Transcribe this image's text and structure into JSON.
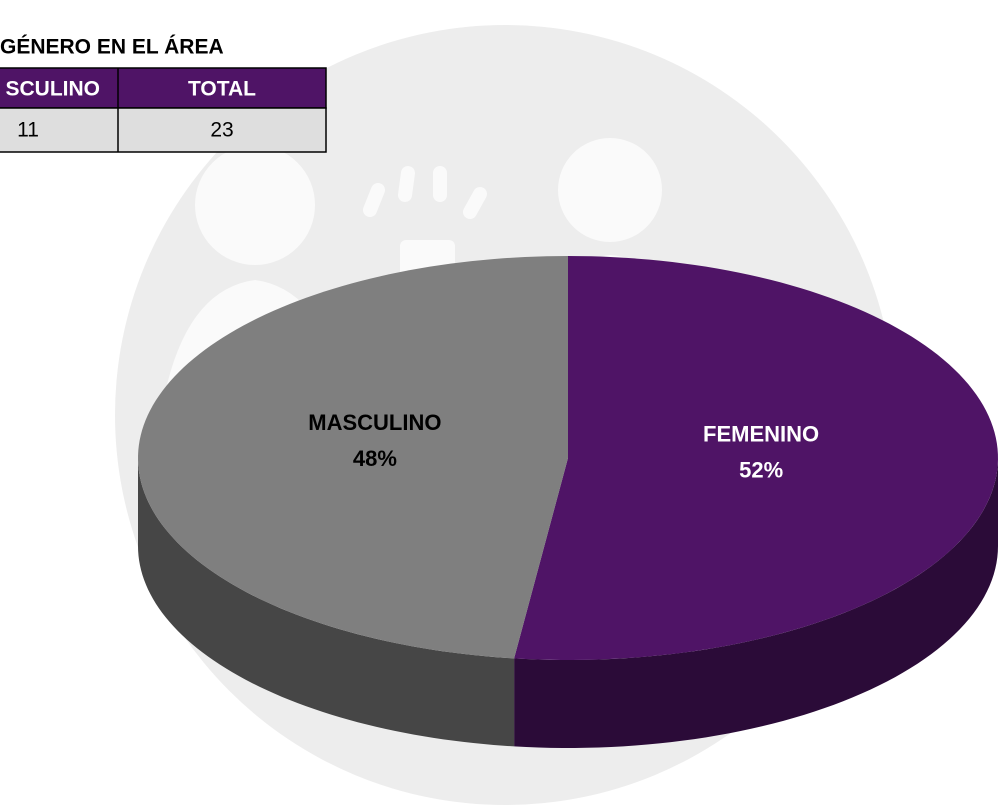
{
  "table": {
    "title": "GÉNERO EN EL ÁREA",
    "headers": [
      "SCULINO",
      "TOTAL"
    ],
    "rows": [
      [
        "11",
        "23"
      ]
    ]
  },
  "chart_data": {
    "type": "pie",
    "categories": [
      "FEMENINO",
      "MASCULINO"
    ],
    "values": [
      52,
      48
    ],
    "value_labels": [
      "52%",
      "48%"
    ],
    "colors": [
      "#4f1466",
      "#7f7f7f"
    ]
  }
}
